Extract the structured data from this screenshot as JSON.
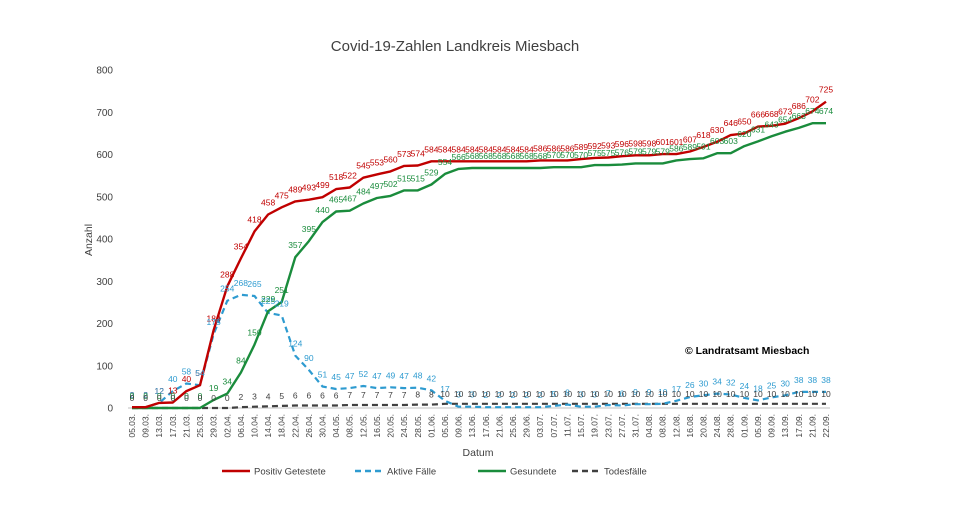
{
  "chart_data": {
    "type": "line",
    "title": "Covid-19-Zahlen Landkreis Miesbach",
    "xlabel": "Datum",
    "ylabel": "Anzahl",
    "ylim": [
      0,
      800
    ],
    "yticks": [
      "0",
      "100",
      "200",
      "300",
      "400",
      "500",
      "600",
      "700",
      "800"
    ],
    "grid": "none",
    "legend_position": "bottom",
    "copyright": "© Landratsamt Miesbach",
    "x_tick_labels": [
      "05.03.",
      "09.03.",
      "13.03.",
      "17.03.",
      "21.03.",
      "25.03.",
      "29.03.",
      "02.04.",
      "06.04.",
      "10.04.",
      "14.04.",
      "18.04.",
      "22.04.",
      "26.04.",
      "30.04.",
      "04.05.",
      "08.05.",
      "12.05.",
      "16.05.",
      "20.05.",
      "24.05.",
      "28.05.",
      "01.06.",
      "05.06.",
      "09.06.",
      "13.06.",
      "17.06.",
      "21.06.",
      "25.06.",
      "29.06.",
      "03.07.",
      "07.07.",
      "11.07.",
      "15.07.",
      "19.07.",
      "23.07.",
      "27.07.",
      "31.07.",
      "04.08.",
      "08.08.",
      "12.08.",
      "16.08.",
      "20.08.",
      "24.08.",
      "28.08.",
      "01.09.",
      "05.09.",
      "09.09.",
      "13.09.",
      "17.09.",
      "21.09.",
      "22.09."
    ],
    "series": [
      {
        "name": "Positiv Getestete",
        "color": "#c00000",
        "dash": "solid",
        "values": [
          2,
          2,
          12,
          13,
          40,
          54,
          184,
          288,
          354,
          418,
          458,
          475,
          489,
          493,
          499,
          518,
          522,
          545,
          553,
          560,
          573,
          574,
          584,
          584,
          584,
          584,
          584,
          584,
          584,
          584,
          586,
          586,
          586,
          589,
          592,
          593,
          596,
          598,
          598,
          601,
          601,
          607,
          618,
          630,
          646,
          650,
          666,
          668,
          673,
          686,
          702,
          725
        ]
      },
      {
        "name": "Aktive Fälle",
        "color": "#2e9bd0",
        "dash": "dashed",
        "values": [
          2,
          2,
          12,
          40,
          58,
          54,
          175,
          254,
          268,
          265,
          225,
          219,
          124,
          90,
          51,
          45,
          47,
          52,
          47,
          49,
          47,
          48,
          42,
          17,
          3,
          3,
          2,
          2,
          2,
          2,
          2,
          5,
          8,
          3,
          3,
          7,
          6,
          9,
          9,
          10,
          17,
          26,
          30,
          34,
          32,
          24,
          18,
          25,
          30,
          38,
          38,
          38
        ]
      },
      {
        "name": "Gesundete",
        "color": "#1a8c3c",
        "dash": "solid",
        "values": [
          0,
          0,
          0,
          0,
          0,
          0,
          19,
          34,
          84,
          150,
          229,
          251,
          357,
          395,
          440,
          465,
          467,
          484,
          497,
          502,
          515,
          515,
          529,
          554,
          566,
          568,
          568,
          568,
          568,
          568,
          568,
          570,
          570,
          570,
          575,
          575,
          576,
          579,
          579,
          579,
          586,
          589,
          591,
          603,
          603,
          620,
          631,
          643,
          654,
          663,
          674,
          674
        ]
      },
      {
        "name": "Todesfälle",
        "color": "#404040",
        "dash": "dashed",
        "values": [
          0,
          0,
          0,
          0,
          0,
          0,
          0,
          0,
          2,
          3,
          4,
          5,
          6,
          6,
          6,
          6,
          7,
          7,
          7,
          7,
          7,
          8,
          8,
          10,
          10,
          10,
          10,
          10,
          10,
          10,
          10,
          10,
          10,
          10,
          10,
          10,
          10,
          10,
          10,
          10,
          10,
          10,
          10,
          10,
          10,
          10,
          10,
          10,
          10,
          10,
          10,
          10
        ]
      }
    ]
  }
}
